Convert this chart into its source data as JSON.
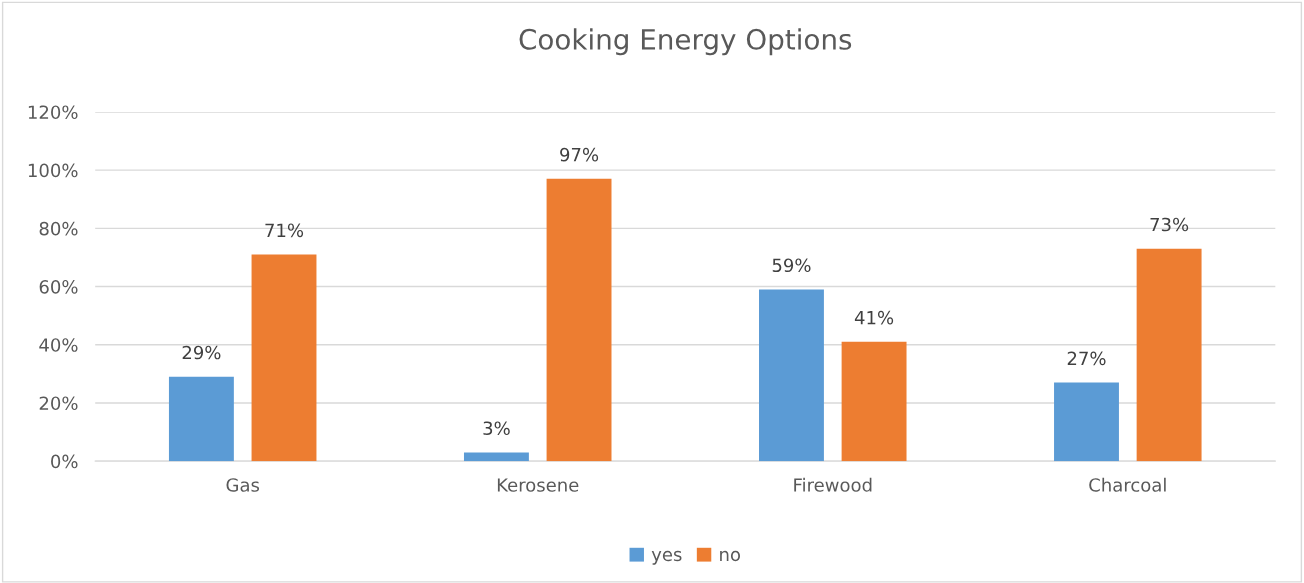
{
  "chart_data": {
    "type": "bar",
    "title": "Cooking Energy Options",
    "categories": [
      "Gas",
      "Kerosene",
      "Firewood",
      "Charcoal"
    ],
    "series": [
      {
        "name": "yes",
        "color": "#5b9bd5",
        "values": [
          29,
          3,
          59,
          27
        ],
        "value_labels": [
          "29%",
          "3%",
          "59%",
          "27%"
        ]
      },
      {
        "name": "no",
        "color": "#ed7d31",
        "values": [
          71,
          97,
          41,
          73
        ],
        "value_labels": [
          "71%",
          "97%",
          "41%",
          "73%"
        ]
      }
    ],
    "ylim": [
      0,
      120
    ],
    "yticks": [
      {
        "value": 0,
        "label": "0%"
      },
      {
        "value": 20,
        "label": "20%"
      },
      {
        "value": 40,
        "label": "40%"
      },
      {
        "value": 60,
        "label": "60%"
      },
      {
        "value": 80,
        "label": "80%"
      },
      {
        "value": 100,
        "label": "100%"
      },
      {
        "value": 120,
        "label": "120%"
      }
    ],
    "grid": "y",
    "legend": "bottom"
  }
}
